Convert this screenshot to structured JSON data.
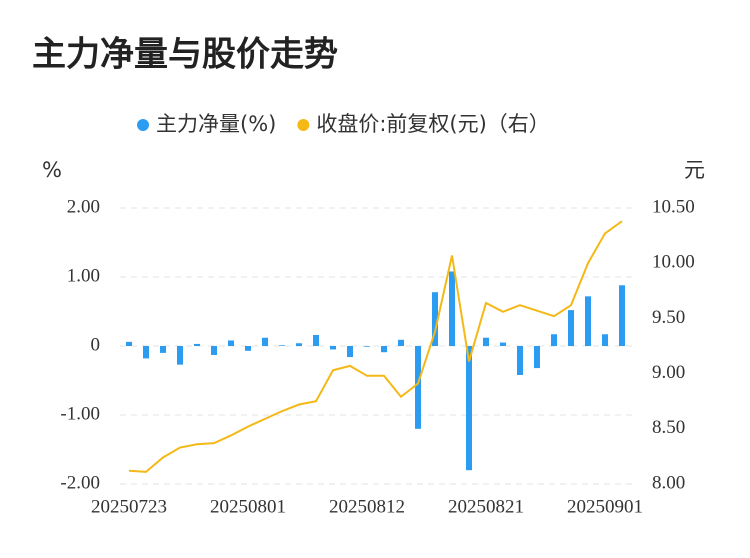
{
  "chart_data": {
    "type": "bar_line",
    "title": "主力净量与股价走势",
    "y_label": "%",
    "y2_label": "元",
    "categories": [
      "20250723",
      null,
      null,
      null,
      null,
      null,
      null,
      "20250801",
      null,
      null,
      null,
      null,
      null,
      null,
      "20250812",
      null,
      null,
      null,
      null,
      null,
      null,
      "20250821",
      null,
      null,
      null,
      null,
      null,
      null,
      "20250901",
      null
    ],
    "series": [
      {
        "name": "主力净量(%)",
        "color": "#2c9cf2",
        "kind": "bar",
        "values": [
          0.06,
          -0.18,
          -0.1,
          -0.27,
          0.03,
          -0.13,
          0.08,
          -0.07,
          0.12,
          0.01,
          0.04,
          0.16,
          -0.05,
          -0.16,
          -0.01,
          -0.09,
          0.09,
          -1.2,
          0.78,
          1.08,
          -1.8,
          0.12,
          0.05,
          -0.42,
          -0.32,
          0.17,
          0.52,
          0.72,
          0.17,
          0.88
        ]
      },
      {
        "name": "收盘价:前复权(元)（右）",
        "color": "#f4b817",
        "kind": "line",
        "axis": "y2",
        "values": [
          8.12,
          8.11,
          8.24,
          8.33,
          8.36,
          8.37,
          8.44,
          8.52,
          8.59,
          8.66,
          8.72,
          8.75,
          9.03,
          9.07,
          8.98,
          8.98,
          8.79,
          8.91,
          9.38,
          10.07,
          9.11,
          9.64,
          9.56,
          9.62,
          9.57,
          9.52,
          9.62,
          10.0,
          10.27,
          10.38
        ]
      }
    ],
    "ylim": [
      -2,
      2
    ],
    "yticks": [
      {
        "value": 2,
        "label": "2.00"
      },
      {
        "value": 1,
        "label": "1.00"
      },
      0,
      {
        "value": -1,
        "label": "-1.00"
      },
      {
        "value": -2,
        "label": "-2.00"
      }
    ],
    "y2lim": [
      8,
      10.5
    ],
    "y2ticks": [
      {
        "value": 10.5,
        "label": "10.50"
      },
      {
        "value": 10,
        "label": "10.00"
      },
      {
        "value": 9.5,
        "label": "9.50"
      },
      {
        "value": 9,
        "label": "9.00"
      },
      {
        "value": 8.5,
        "label": "8.50"
      },
      {
        "value": 8,
        "label": "8.00"
      }
    ],
    "grid": true
  }
}
